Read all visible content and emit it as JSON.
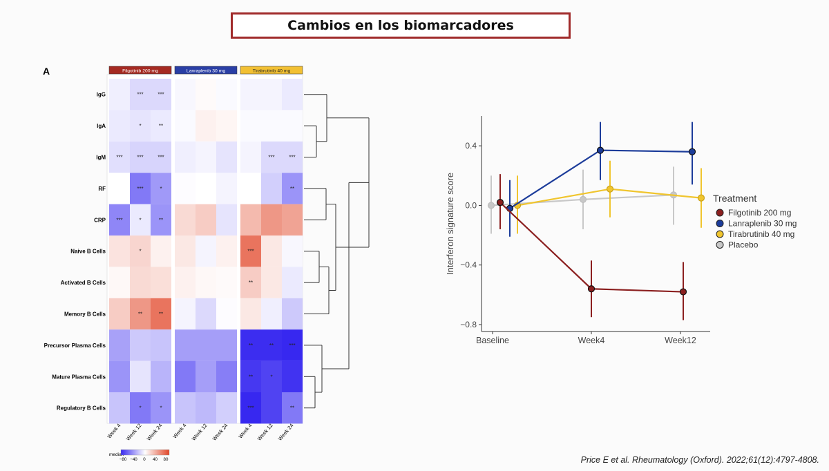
{
  "slide": {
    "title": "Cambios en los biomarcadores",
    "citation": "Price E et al. Rheumatology (Oxford). 2022;61(12):4797-4808."
  },
  "heatmap": {
    "panel_label": "A",
    "groups": [
      {
        "label": "Filgotinib 200 mg",
        "color": "#a52a22"
      },
      {
        "label": "Lanraplenib 30 mg",
        "color": "#2a3fa5"
      },
      {
        "label": "Tirabrutinib 40 mg",
        "color": "#f2c033"
      }
    ],
    "columns": [
      "Week 4",
      "Week 12",
      "Week 24"
    ],
    "legend": {
      "title": "median",
      "ticks": [
        "−80",
        "−40",
        "0",
        "40",
        "80"
      ]
    }
  },
  "chart_data": [
    {
      "type": "heatmap",
      "rows": [
        "IgG",
        "IgA",
        "IgM",
        "RF",
        "CRP",
        "Naive B Cells",
        "Activated B Cells",
        "Memory B Cells",
        "Precursor Plasma Cells",
        "Mature Plasma Cells",
        "Regulatory B Cells"
      ],
      "groups": [
        "Filgotinib 200 mg",
        "Lanraplenib 30 mg",
        "Tirabrutinib 40 mg"
      ],
      "columns": [
        "Week 4",
        "Week 12",
        "Week 24"
      ],
      "values": [
        [
          -6,
          -14,
          -14,
          -3,
          2,
          -2,
          -4,
          -4,
          -8
        ],
        [
          -8,
          -10,
          -8,
          -2,
          6,
          4,
          -2,
          -2,
          -2
        ],
        [
          -12,
          -16,
          -16,
          -6,
          -4,
          -10,
          -4,
          -14,
          -14
        ],
        [
          0,
          -50,
          -38,
          -1,
          0,
          -4,
          0,
          -18,
          -40
        ],
        [
          -45,
          -8,
          -40,
          16,
          22,
          -10,
          30,
          45,
          40
        ],
        [
          12,
          18,
          6,
          10,
          -4,
          6,
          60,
          10,
          -3
        ],
        [
          3,
          16,
          14,
          6,
          3,
          2,
          22,
          10,
          -8
        ],
        [
          22,
          45,
          60,
          -4,
          -14,
          -1,
          10,
          -6,
          -20
        ],
        [
          -35,
          -20,
          -22,
          -36,
          -36,
          -36,
          -78,
          -78,
          -82
        ],
        [
          -40,
          -10,
          -28,
          -50,
          -36,
          -48,
          -74,
          -70,
          -76
        ],
        [
          -22,
          -50,
          -40,
          -22,
          -26,
          -18,
          -90,
          -70,
          -50
        ]
      ],
      "significance": [
        [
          "",
          "***",
          "***",
          "",
          "",
          "",
          "",
          "",
          ""
        ],
        [
          "",
          "*",
          "**",
          "",
          "",
          "",
          "",
          "",
          ""
        ],
        [
          "***",
          "***",
          "***",
          "",
          "",
          "",
          "",
          "***",
          "***"
        ],
        [
          "",
          "***",
          "*",
          "",
          "",
          "",
          "",
          "",
          "**"
        ],
        [
          "***",
          "*",
          "**",
          "",
          "",
          "",
          "",
          "",
          ""
        ],
        [
          "",
          "*",
          "",
          "",
          "",
          "",
          "***",
          "",
          ""
        ],
        [
          "",
          "",
          "",
          "",
          "",
          "",
          "**",
          "",
          ""
        ],
        [
          "",
          "**",
          "**",
          "",
          "",
          "",
          "",
          "",
          ""
        ],
        [
          "",
          "",
          "",
          "",
          "",
          "",
          "**",
          "**",
          "***"
        ],
        [
          "",
          "",
          "",
          "",
          "",
          "",
          "**",
          "*",
          ""
        ],
        [
          "",
          "*",
          "*",
          "",
          "",
          "",
          "***",
          "",
          "**"
        ]
      ],
      "color_range": [
        -80,
        80
      ],
      "legend_title": "median"
    },
    {
      "type": "line",
      "x": [
        "Baseline",
        "Week4",
        "Week12"
      ],
      "ylabel": "Interferon signature score",
      "ylim": [
        -0.8,
        0.6
      ],
      "yticks": [
        "0.4",
        "0.0",
        "−0.4",
        "−0.8"
      ],
      "legend_title": "Treatment",
      "legend_position": "right",
      "series": [
        {
          "name": "Filgotinib 200 mg",
          "color": "#8b1f1f",
          "values": [
            0.02,
            -0.56,
            -0.58
          ],
          "lower": [
            -0.16,
            -0.75,
            -0.77
          ],
          "upper": [
            0.21,
            -0.37,
            -0.38
          ]
        },
        {
          "name": "Lanraplenib 30 mg",
          "color": "#1c3c9a",
          "values": [
            -0.02,
            0.37,
            0.36
          ],
          "lower": [
            -0.21,
            0.17,
            0.14
          ],
          "upper": [
            0.17,
            0.56,
            0.56
          ]
        },
        {
          "name": "Tirabrutinib 40 mg",
          "color": "#f0c52e",
          "values": [
            0.0,
            0.11,
            0.05
          ],
          "lower": [
            -0.19,
            -0.08,
            -0.15
          ],
          "upper": [
            0.2,
            0.3,
            0.25
          ]
        },
        {
          "name": "Placebo",
          "color": "#c8c8c8",
          "values": [
            0.0,
            0.04,
            0.07
          ],
          "lower": [
            -0.19,
            -0.16,
            -0.13
          ],
          "upper": [
            0.2,
            0.24,
            0.26
          ]
        }
      ]
    }
  ]
}
